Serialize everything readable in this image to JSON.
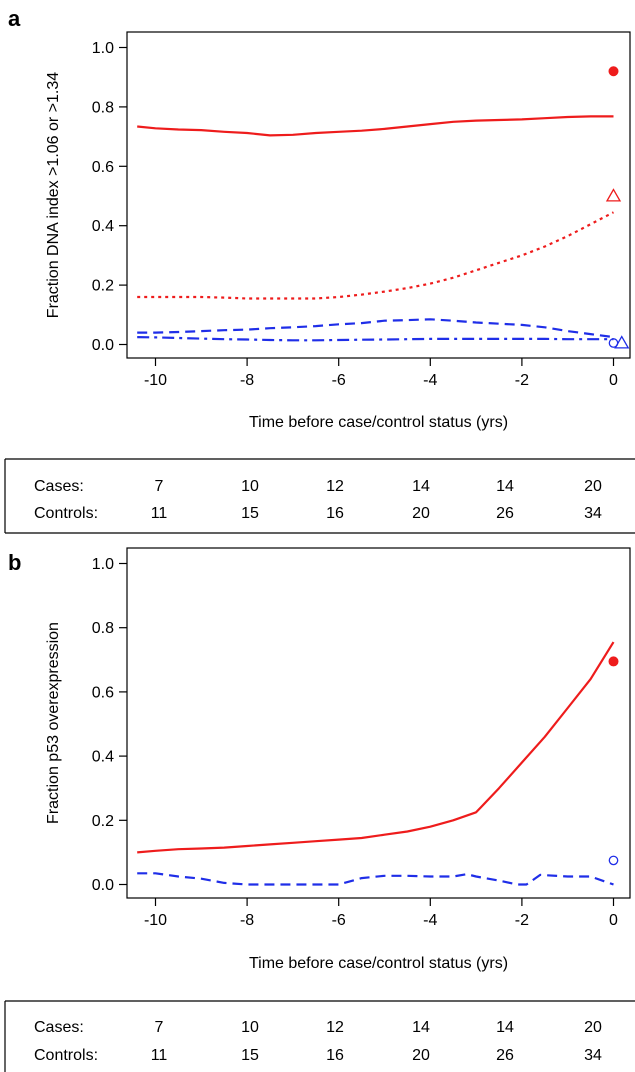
{
  "chart_data": [
    {
      "panel": "a",
      "type": "line",
      "xlabel": "Time before case/control status (yrs)",
      "ylabel": "Fraction DNA index >1.06 or >1.34",
      "xlim": [
        -10.4,
        0.4
      ],
      "ylim": [
        0.0,
        1.0
      ],
      "xticks": [
        "-10",
        "-8",
        "-6",
        "-4",
        "-2",
        "0"
      ],
      "xtick_values": [
        -10,
        -8,
        -6,
        -4,
        -2,
        0
      ],
      "yticks": [
        "0.0",
        "0.2",
        "0.4",
        "0.6",
        "0.8",
        "1.0"
      ],
      "ytick_values": [
        0,
        0.2,
        0.4,
        0.6,
        0.8,
        1.0
      ],
      "grid": false,
      "series": [
        {
          "color": "#ee1c1c",
          "dash": "solid",
          "x": [
            -10.4,
            -10,
            -9.5,
            -9,
            -8.5,
            -8,
            -7.5,
            -7,
            -6.5,
            -6,
            -5.5,
            -5,
            -4.5,
            -4,
            -3.5,
            -3,
            -2.5,
            -2,
            -1.5,
            -1,
            -0.5,
            0
          ],
          "y": [
            0.734,
            0.728,
            0.724,
            0.722,
            0.716,
            0.712,
            0.704,
            0.706,
            0.712,
            0.716,
            0.72,
            0.726,
            0.734,
            0.742,
            0.75,
            0.754,
            0.756,
            0.758,
            0.762,
            0.766,
            0.768,
            0.768
          ]
        },
        {
          "color": "#ee1c1c",
          "dash": "dotted",
          "x": [
            -10.4,
            -10,
            -9.5,
            -9,
            -8.5,
            -8,
            -7.5,
            -7,
            -6.5,
            -6,
            -5.5,
            -5,
            -4.5,
            -4,
            -3.5,
            -3,
            -2.5,
            -2,
            -1.5,
            -1,
            -0.5,
            0
          ],
          "y": [
            0.16,
            0.16,
            0.16,
            0.16,
            0.158,
            0.155,
            0.155,
            0.155,
            0.155,
            0.16,
            0.168,
            0.178,
            0.19,
            0.205,
            0.225,
            0.25,
            0.275,
            0.3,
            0.33,
            0.365,
            0.405,
            0.445
          ]
        },
        {
          "color": "#1f2ee8",
          "dash": "dashed",
          "x": [
            -10.4,
            -10,
            -9.5,
            -9,
            -8.5,
            -8,
            -7.5,
            -7,
            -6.5,
            -6,
            -5.5,
            -5,
            -4.5,
            -4,
            -3.5,
            -3,
            -2.5,
            -2,
            -1.5,
            -1,
            -0.5,
            0
          ],
          "y": [
            0.04,
            0.04,
            0.042,
            0.045,
            0.048,
            0.05,
            0.055,
            0.058,
            0.062,
            0.068,
            0.072,
            0.08,
            0.082,
            0.085,
            0.08,
            0.074,
            0.07,
            0.066,
            0.058,
            0.045,
            0.035,
            0.025
          ]
        },
        {
          "color": "#1f2ee8",
          "dash": "dashdot",
          "x": [
            -10.4,
            -10,
            -9.5,
            -9,
            -8.5,
            -8,
            -7.5,
            -7,
            -6.5,
            -6,
            -5.5,
            -5,
            -4.5,
            -4,
            -3.5,
            -3,
            -2.5,
            -2,
            -1.5,
            -1,
            -0.5,
            0
          ],
          "y": [
            0.025,
            0.024,
            0.022,
            0.02,
            0.018,
            0.017,
            0.015,
            0.014,
            0.014,
            0.015,
            0.016,
            0.017,
            0.018,
            0.019,
            0.019,
            0.019,
            0.019,
            0.019,
            0.019,
            0.018,
            0.018,
            0.018
          ]
        }
      ],
      "points": [
        {
          "x": 0.0,
          "y": 0.92,
          "shape": "filled-circle",
          "color": "#ee1c1c"
        },
        {
          "x": 0.0,
          "y": 0.5,
          "shape": "open-triangle",
          "color": "#ee1c1c"
        },
        {
          "x": 0.0,
          "y": 0.005,
          "shape": "open-circle",
          "color": "#1f2ee8"
        },
        {
          "x": 0.18,
          "y": 0.005,
          "shape": "open-triangle",
          "color": "#1f2ee8"
        }
      ],
      "table": {
        "rows": [
          {
            "label": "Cases:",
            "values": [
              "7",
              "10",
              "12",
              "14",
              "14",
              "20"
            ]
          },
          {
            "label": "Controls:",
            "values": [
              "11",
              "15",
              "16",
              "20",
              "26",
              "34"
            ]
          }
        ]
      }
    },
    {
      "panel": "b",
      "type": "line",
      "xlabel": "Time before case/control status (yrs)",
      "ylabel": "Fraction p53 overexpression",
      "xlim": [
        -10.4,
        0.4
      ],
      "ylim": [
        0.0,
        1.0
      ],
      "xticks": [
        "-10",
        "-8",
        "-6",
        "-4",
        "-2",
        "0"
      ],
      "xtick_values": [
        -10,
        -8,
        -6,
        -4,
        -2,
        0
      ],
      "yticks": [
        "0.0",
        "0.2",
        "0.4",
        "0.6",
        "0.8",
        "1.0"
      ],
      "ytick_values": [
        0,
        0.2,
        0.4,
        0.6,
        0.8,
        1.0
      ],
      "grid": false,
      "series": [
        {
          "color": "#ee1c1c",
          "dash": "solid",
          "x": [
            -10.4,
            -10,
            -9.5,
            -9,
            -8.5,
            -8,
            -7.5,
            -7,
            -6.5,
            -6,
            -5.5,
            -5,
            -4.5,
            -4,
            -3.5,
            -3,
            -2.9,
            -2.5,
            -2,
            -1.5,
            -1,
            -0.5,
            0
          ],
          "y": [
            0.1,
            0.105,
            0.11,
            0.112,
            0.115,
            0.12,
            0.125,
            0.13,
            0.135,
            0.14,
            0.145,
            0.155,
            0.165,
            0.18,
            0.2,
            0.225,
            0.24,
            0.3,
            0.38,
            0.46,
            0.55,
            0.64,
            0.755
          ]
        },
        {
          "color": "#1f2ee8",
          "dash": "dashed",
          "x": [
            -10.4,
            -10,
            -9.5,
            -9,
            -8.5,
            -8,
            -7.5,
            -7,
            -6.5,
            -6,
            -5.5,
            -5,
            -4.5,
            -4,
            -3.5,
            -3.2,
            -3,
            -2.5,
            -2.1,
            -1.9,
            -1.6,
            -1,
            -0.5,
            0
          ],
          "y": [
            0.035,
            0.035,
            0.025,
            0.018,
            0.005,
            0.0,
            0.0,
            0.0,
            0.0,
            0.0,
            0.02,
            0.027,
            0.027,
            0.025,
            0.025,
            0.032,
            0.025,
            0.012,
            0.0,
            0.0,
            0.03,
            0.025,
            0.025,
            0.0
          ]
        }
      ],
      "points": [
        {
          "x": 0.0,
          "y": 0.695,
          "shape": "filled-circle",
          "color": "#ee1c1c"
        },
        {
          "x": 0.0,
          "y": 0.075,
          "shape": "open-circle",
          "color": "#1f2ee8"
        }
      ],
      "table": {
        "rows": [
          {
            "label": "Cases:",
            "values": [
              "7",
              "10",
              "12",
              "14",
              "14",
              "20"
            ]
          },
          {
            "label": "Controls:",
            "values": [
              "11",
              "15",
              "16",
              "20",
              "26",
              "34"
            ]
          }
        ]
      }
    }
  ]
}
